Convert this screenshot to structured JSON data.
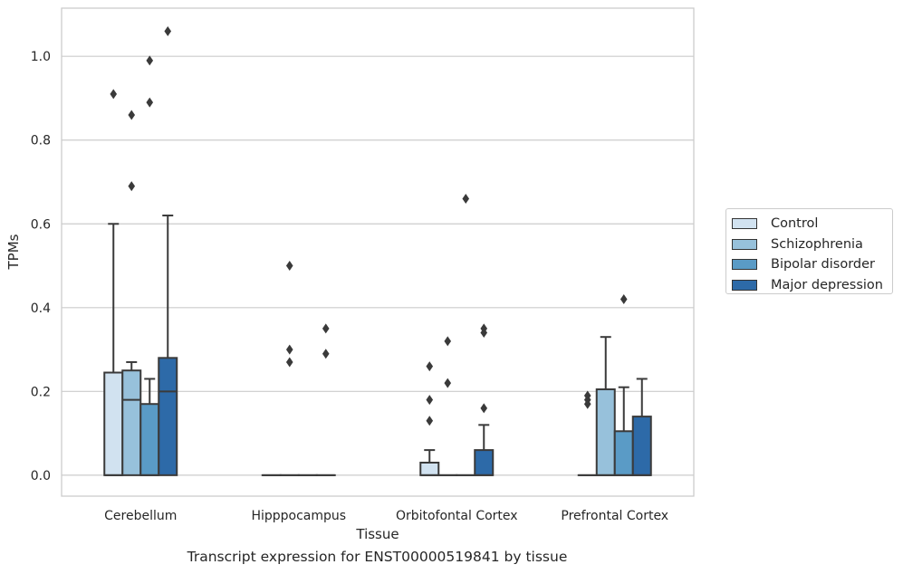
{
  "chart_data": {
    "type": "box",
    "title": "Transcript expression for ENST00000519841 by tissue",
    "xlabel": "Tissue",
    "ylabel": "TPMs",
    "ylim": [
      -0.05,
      1.115
    ],
    "yticks": [
      "0.0",
      "0.2",
      "0.4",
      "0.6",
      "0.8",
      "1.0"
    ],
    "categories": [
      "Cerebellum",
      "Hipppocampus",
      "Orbitofontal Cortex",
      "Prefrontal Cortex"
    ],
    "grid": true,
    "legend_position": "right",
    "series": [
      {
        "name": "Control",
        "color": "#d1e2f0",
        "boxes": [
          {
            "q1": 0.0,
            "median": 0.0,
            "q3": 0.245,
            "whisker_low": 0.0,
            "whisker_high": 0.6,
            "outliers": [
              0.91
            ]
          },
          {
            "q1": 0.0,
            "median": 0.0,
            "q3": 0.0,
            "whisker_low": 0.0,
            "whisker_high": 0.0,
            "outliers": []
          },
          {
            "q1": 0.0,
            "median": 0.0,
            "q3": 0.03,
            "whisker_low": 0.0,
            "whisker_high": 0.06,
            "outliers": [
              0.13,
              0.18,
              0.26
            ]
          },
          {
            "q1": 0.0,
            "median": 0.0,
            "q3": 0.0,
            "whisker_low": 0.0,
            "whisker_high": 0.0,
            "outliers": [
              0.17,
              0.18,
              0.19
            ]
          }
        ]
      },
      {
        "name": "Schizophrenia",
        "color": "#97c1db",
        "boxes": [
          {
            "q1": 0.0,
            "median": 0.18,
            "q3": 0.25,
            "whisker_low": 0.0,
            "whisker_high": 0.27,
            "outliers": [
              0.69,
              0.86
            ]
          },
          {
            "q1": 0.0,
            "median": 0.0,
            "q3": 0.0,
            "whisker_low": 0.0,
            "whisker_high": 0.0,
            "outliers": [
              0.27,
              0.3,
              0.5
            ]
          },
          {
            "q1": 0.0,
            "median": 0.0,
            "q3": 0.0,
            "whisker_low": 0.0,
            "whisker_high": 0.0,
            "outliers": [
              0.22,
              0.32
            ]
          },
          {
            "q1": 0.0,
            "median": 0.0,
            "q3": 0.205,
            "whisker_low": 0.0,
            "whisker_high": 0.33,
            "outliers": []
          }
        ]
      },
      {
        "name": "Bipolar disorder",
        "color": "#5a9bc6",
        "boxes": [
          {
            "q1": 0.0,
            "median": 0.0,
            "q3": 0.17,
            "whisker_low": 0.0,
            "whisker_high": 0.23,
            "outliers": [
              0.89,
              0.99
            ]
          },
          {
            "q1": 0.0,
            "median": 0.0,
            "q3": 0.0,
            "whisker_low": 0.0,
            "whisker_high": 0.0,
            "outliers": []
          },
          {
            "q1": 0.0,
            "median": 0.0,
            "q3": 0.0,
            "whisker_low": 0.0,
            "whisker_high": 0.0,
            "outliers": [
              0.66
            ]
          },
          {
            "q1": 0.0,
            "median": 0.0,
            "q3": 0.105,
            "whisker_low": 0.0,
            "whisker_high": 0.21,
            "outliers": [
              0.42
            ]
          }
        ]
      },
      {
        "name": "Major depression",
        "color": "#2d6aa8",
        "boxes": [
          {
            "q1": 0.0,
            "median": 0.2,
            "q3": 0.28,
            "whisker_low": 0.0,
            "whisker_high": 0.62,
            "outliers": [
              1.06
            ]
          },
          {
            "q1": 0.0,
            "median": 0.0,
            "q3": 0.0,
            "whisker_low": 0.0,
            "whisker_high": 0.0,
            "outliers": [
              0.29,
              0.35
            ]
          },
          {
            "q1": 0.0,
            "median": 0.0,
            "q3": 0.06,
            "whisker_low": 0.0,
            "whisker_high": 0.12,
            "outliers": [
              0.16,
              0.34,
              0.35
            ]
          },
          {
            "q1": 0.0,
            "median": 0.0,
            "q3": 0.14,
            "whisker_low": 0.0,
            "whisker_high": 0.23,
            "outliers": []
          }
        ]
      }
    ]
  }
}
